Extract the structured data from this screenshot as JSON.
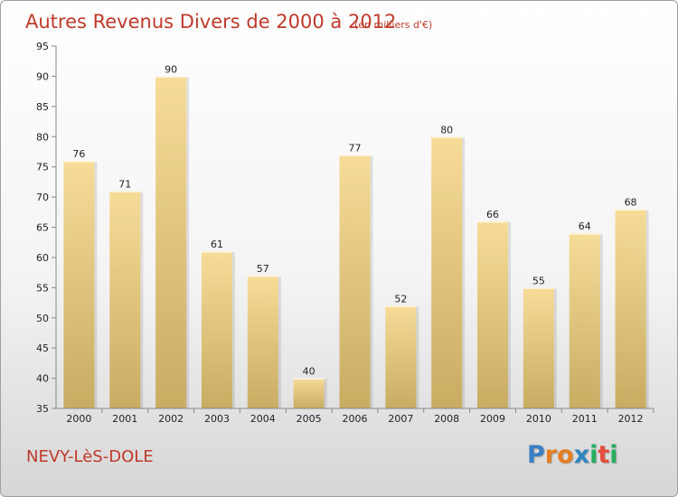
{
  "chart_data": {
    "type": "bar",
    "title": "Autres Revenus Divers de 2000 à 2012",
    "subtitle": "(en milliers d'€)",
    "categories": [
      "2000",
      "2001",
      "2002",
      "2003",
      "2004",
      "2005",
      "2006",
      "2007",
      "2008",
      "2009",
      "2010",
      "2011",
      "2012"
    ],
    "values": [
      76,
      71,
      90,
      61,
      57,
      40,
      77,
      52,
      80,
      66,
      55,
      64,
      68
    ],
    "xlabel": "",
    "ylabel": "",
    "ylim": [
      35,
      95
    ],
    "yticks": [
      35,
      40,
      45,
      50,
      55,
      60,
      65,
      70,
      75,
      80,
      85,
      90,
      95
    ],
    "grid": false,
    "bar_color_light": "#f7dc98",
    "bar_color_dark": "#c8ac62",
    "title_color": "#c0392b"
  },
  "footer": {
    "commune": "NEVY-LèS-DOLE"
  },
  "logo": {
    "letters": [
      "P",
      "r",
      "o",
      "x",
      "i",
      "t",
      "i"
    ],
    "colors": [
      "#3b7fc4",
      "#e67e22",
      "#e67e22",
      "#2e86c1",
      "#27ae60",
      "#e74c3c",
      "#27ae60"
    ]
  }
}
